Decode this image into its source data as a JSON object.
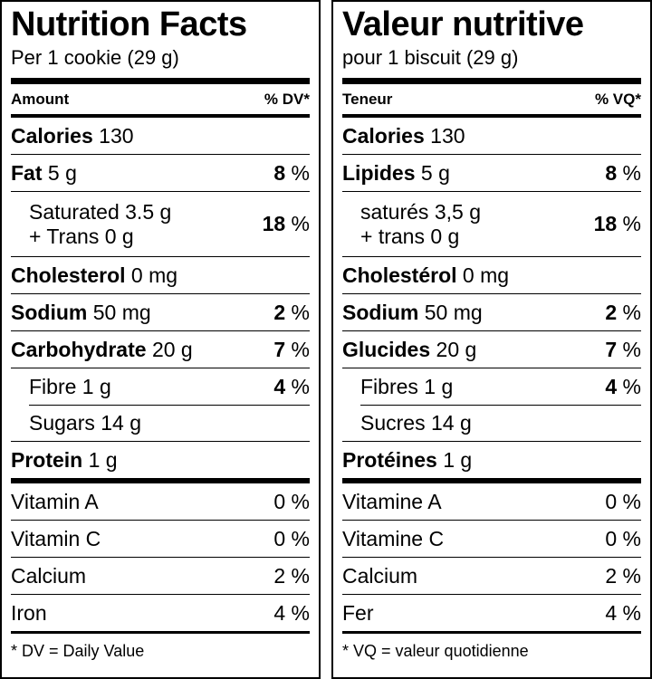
{
  "panels": [
    {
      "title": "Nutrition Facts",
      "serving": "Per 1 cookie (29 g)",
      "header": {
        "amount": "Amount",
        "dv": "% DV*"
      },
      "rows": [
        {
          "name": "Calories",
          "amount": "130"
        },
        {
          "name": "Fat",
          "amount": "5 g",
          "dv": "8",
          "pct": "%"
        },
        {
          "name": "Saturated",
          "amount": "3.5 g",
          "line2": "+ Trans 0 g",
          "dv": "18",
          "pct": "%",
          "indent": true,
          "plain": true
        },
        {
          "name": "Cholesterol",
          "amount": "0 mg"
        },
        {
          "name": "Sodium",
          "amount": "50 mg",
          "dv": "2",
          "pct": "%"
        },
        {
          "name": "Carbohydrate",
          "amount": "20 g",
          "dv": "7",
          "pct": "%"
        },
        {
          "name": "Fibre",
          "amount": "1 g",
          "dv": "4",
          "pct": "%",
          "indent": true,
          "plain": true
        },
        {
          "name": "Sugars",
          "amount": "14 g",
          "indent": true,
          "plain": true
        },
        {
          "name": "Protein",
          "amount": "1 g"
        }
      ],
      "vitamins": [
        {
          "name": "Vitamin A",
          "dv": "0 %"
        },
        {
          "name": "Vitamin C",
          "dv": "0 %"
        },
        {
          "name": "Calcium",
          "dv": "2 %"
        },
        {
          "name": "Iron",
          "dv": "4 %"
        }
      ],
      "footnote": "* DV = Daily Value"
    },
    {
      "title": "Valeur nutritive",
      "serving": "pour 1 biscuit (29 g)",
      "header": {
        "amount": "Teneur",
        "dv": "% VQ*"
      },
      "rows": [
        {
          "name": "Calories",
          "amount": "130"
        },
        {
          "name": "Lipides",
          "amount": "5 g",
          "dv": "8",
          "pct": "%"
        },
        {
          "name": "saturés",
          "amount": "3,5 g",
          "line2": "+ trans 0 g",
          "dv": "18",
          "pct": "%",
          "indent": true,
          "plain": true
        },
        {
          "name": "Cholestérol",
          "amount": "0 mg"
        },
        {
          "name": "Sodium",
          "amount": "50 mg",
          "dv": "2",
          "pct": "%"
        },
        {
          "name": "Glucides",
          "amount": "20 g",
          "dv": "7",
          "pct": "%"
        },
        {
          "name": "Fibres",
          "amount": "1 g",
          "dv": "4",
          "pct": "%",
          "indent": true,
          "plain": true
        },
        {
          "name": "Sucres",
          "amount": "14 g",
          "indent": true,
          "plain": true
        },
        {
          "name": "Protéines",
          "amount": "1 g"
        }
      ],
      "vitamins": [
        {
          "name": "Vitamine A",
          "dv": "0 %"
        },
        {
          "name": "Vitamine C",
          "dv": "0 %"
        },
        {
          "name": "Calcium",
          "dv": "2 %"
        },
        {
          "name": "Fer",
          "dv": "4 %"
        }
      ],
      "footnote": "* VQ = valeur quotidienne"
    }
  ]
}
